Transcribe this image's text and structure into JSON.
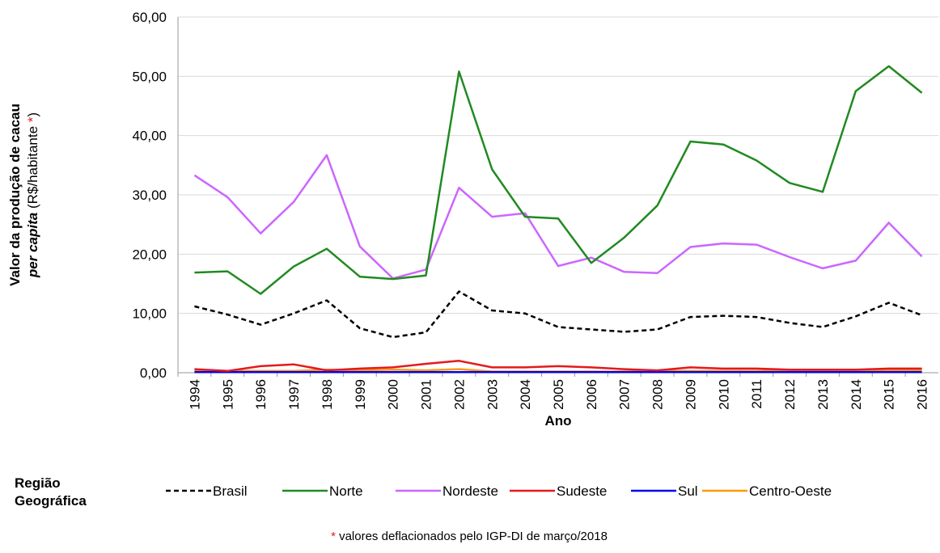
{
  "chart_data": {
    "type": "line",
    "ylabel": {
      "line1": "Valor da produção de cacau",
      "line2_italic": "per capita",
      "line2_rest": "(R$/habitante",
      "asterisk": "*",
      "close": ")"
    },
    "xlabel": "Ano",
    "legend_title": [
      "Região",
      "Geográfica"
    ],
    "footnote": {
      "asterisk": "*",
      "text": "valores deflacionados pelo IGP-DI de março/2018"
    },
    "categories": [
      "1994",
      "1995",
      "1996",
      "1997",
      "1998",
      "1999",
      "2000",
      "2001",
      "2002",
      "2003",
      "2004",
      "2005",
      "2006",
      "2007",
      "2008",
      "2009",
      "2010",
      "2011",
      "2012",
      "2013",
      "2014",
      "2015",
      "2016"
    ],
    "ylim": [
      0,
      60
    ],
    "yticks": [
      {
        "value": 0,
        "label": "0,00"
      },
      {
        "value": 10,
        "label": "10,00"
      },
      {
        "value": 20,
        "label": "20,00"
      },
      {
        "value": 30,
        "label": "30,00"
      },
      {
        "value": 40,
        "label": "40,00"
      },
      {
        "value": 50,
        "label": "50,00"
      },
      {
        "value": 60,
        "label": "60,00"
      }
    ],
    "grid": true,
    "series": [
      {
        "name": "Brasil",
        "color": "#000000",
        "style": "dashed",
        "values": [
          11.2,
          9.8,
          8.1,
          10.0,
          12.2,
          7.5,
          6.0,
          6.8,
          13.7,
          10.5,
          10.0,
          7.7,
          7.3,
          6.9,
          7.3,
          9.4,
          9.6,
          9.4,
          8.4,
          7.7,
          9.5,
          11.8,
          9.7
        ]
      },
      {
        "name": "Norte",
        "color": "#218a21",
        "style": "solid",
        "values": [
          16.9,
          17.1,
          13.3,
          17.9,
          20.9,
          16.2,
          15.8,
          16.4,
          50.8,
          34.3,
          26.3,
          26.0,
          18.5,
          22.8,
          28.2,
          39.0,
          38.5,
          35.8,
          32.0,
          30.5,
          47.5,
          51.7,
          47.2
        ]
      },
      {
        "name": "Nordeste",
        "color": "#cc66ff",
        "style": "solid",
        "values": [
          33.3,
          29.6,
          23.5,
          28.8,
          36.7,
          21.3,
          15.9,
          17.4,
          31.2,
          26.3,
          26.9,
          18.0,
          19.4,
          17.0,
          16.8,
          21.2,
          21.8,
          21.6,
          19.5,
          17.6,
          18.9,
          25.3,
          19.6
        ]
      },
      {
        "name": "Sudeste",
        "color": "#e31a1c",
        "style": "solid",
        "values": [
          0.6,
          0.3,
          1.1,
          1.4,
          0.4,
          0.7,
          0.9,
          1.5,
          2.0,
          0.9,
          0.9,
          1.1,
          0.9,
          0.6,
          0.4,
          0.9,
          0.7,
          0.7,
          0.5,
          0.5,
          0.5,
          0.7,
          0.7
        ]
      },
      {
        "name": "Sul",
        "color": "#0000ee",
        "style": "solid",
        "values": [
          0.1,
          0.1,
          0.1,
          0.1,
          0.1,
          0.1,
          0.1,
          0.1,
          0.1,
          0.1,
          0.1,
          0.1,
          0.1,
          0.1,
          0.1,
          0.1,
          0.1,
          0.1,
          0.1,
          0.1,
          0.1,
          0.1,
          0.1
        ]
      },
      {
        "name": "Centro-Oeste",
        "color": "#ff9900",
        "style": "solid",
        "values": [
          0.4,
          0.3,
          0.3,
          0.3,
          0.5,
          0.4,
          0.5,
          0.4,
          0.6,
          0.2,
          0.2,
          0.2,
          0.2,
          0.2,
          0.3,
          0.3,
          0.3,
          0.3,
          0.3,
          0.3,
          0.3,
          0.4,
          0.4
        ]
      }
    ]
  }
}
